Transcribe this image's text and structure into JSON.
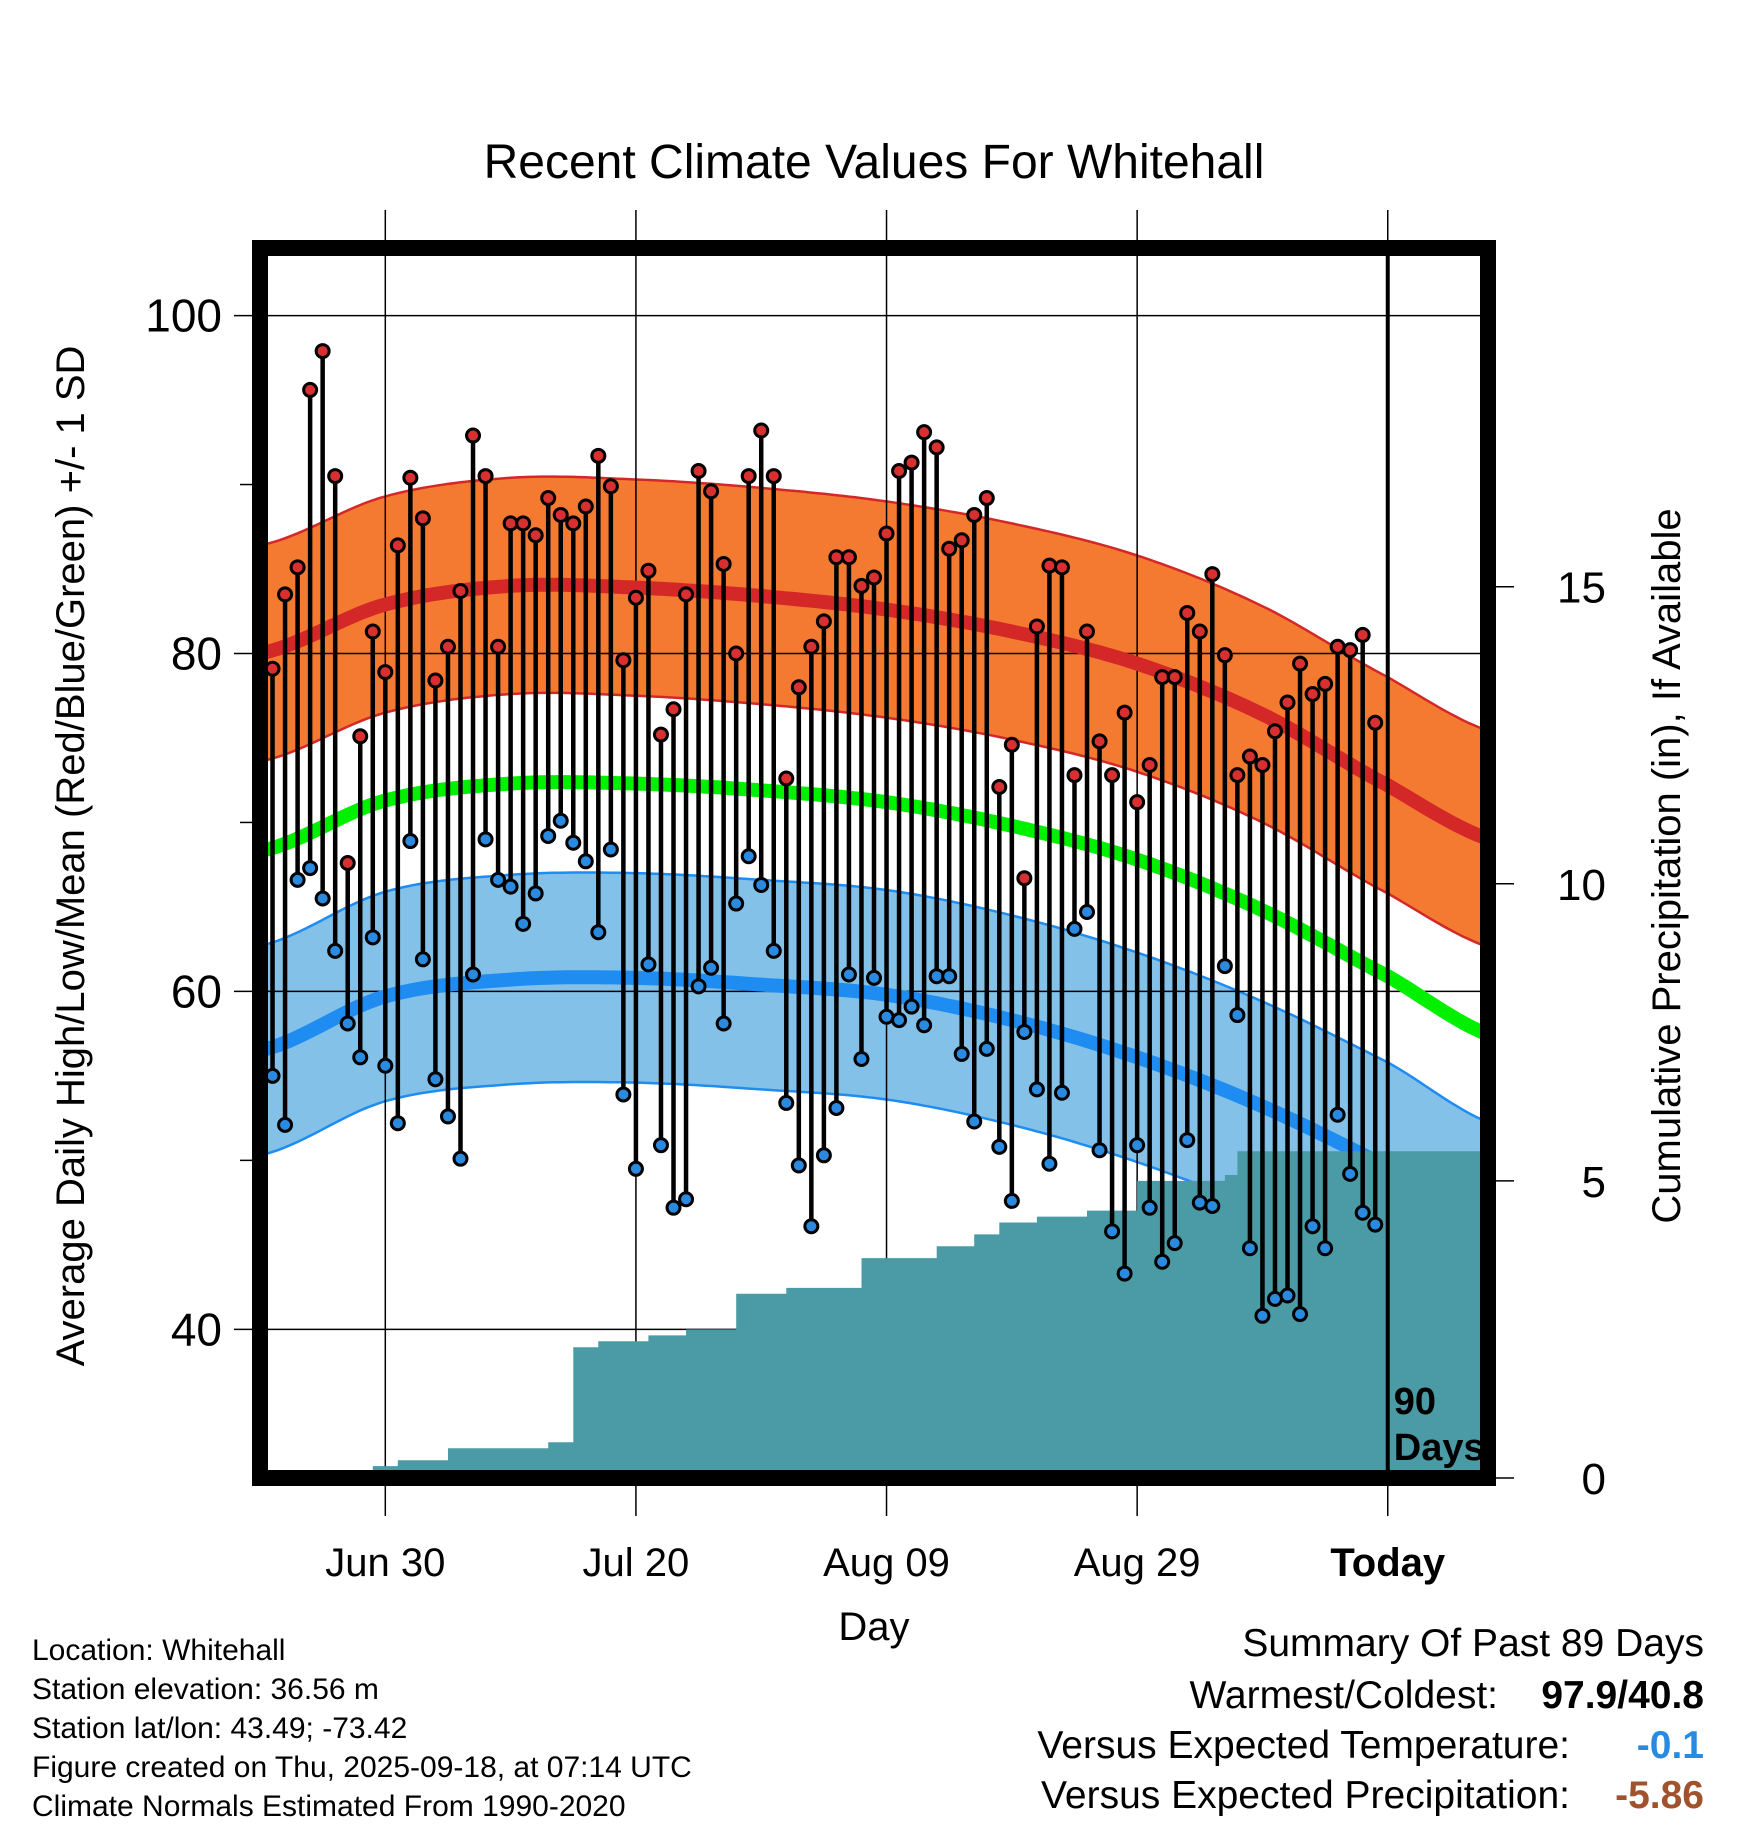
{
  "chart_data": {
    "type": "line",
    "title": "Recent Climate Values For Whitehall",
    "xlabel": "Day",
    "ylabel": "Average Daily High/Low/Mean (Red/Blue/Green) +/- 1 SD",
    "y2label": "Cumulative Precipitation (in), If Available",
    "xlim": [
      -89,
      9
    ],
    "ylim": [
      31.2,
      104
    ],
    "y2lim": [
      0,
      20.7
    ],
    "yticks": [
      100,
      80,
      60,
      40
    ],
    "y2ticks": [
      15,
      10,
      5,
      0
    ],
    "xticks": [
      {
        "day": -79,
        "label": "Jun 30"
      },
      {
        "day": -59,
        "label": "Jul 20"
      },
      {
        "day": -39,
        "label": "Aug 09"
      },
      {
        "day": -19,
        "label": "Aug 29"
      },
      {
        "day": 1,
        "label": "Today"
      }
    ],
    "window_label": [
      "90",
      "Days"
    ],
    "normals": {
      "high_mean": {
        "x": [
          -89,
          -79,
          -69,
          -59,
          -49,
          -39,
          -29,
          -19,
          -9,
          1,
          10
        ],
        "y": [
          80.0,
          82.9,
          84.0,
          83.9,
          83.4,
          82.6,
          81.3,
          79.4,
          76.4,
          72.2,
          68.8
        ]
      },
      "high_sd": 6.4,
      "low_mean": {
        "x": [
          -89,
          -79,
          -69,
          -59,
          -49,
          -39,
          -29,
          -19,
          -9,
          1,
          10
        ],
        "y": [
          56.5,
          59.7,
          60.7,
          60.8,
          60.4,
          59.8,
          58.3,
          56.1,
          53.2,
          49.6,
          45.8
        ]
      },
      "low_sd": 6.2,
      "mean_mean": {
        "x": [
          -89,
          -79,
          -69,
          -59,
          -49,
          -39,
          -29,
          -19,
          -9,
          1,
          10
        ],
        "y": [
          68.3,
          71.3,
          72.3,
          72.3,
          71.9,
          71.2,
          69.8,
          67.8,
          64.8,
          60.9,
          57.2
        ]
      }
    },
    "highs": [
      79.1,
      83.5,
      85.1,
      95.6,
      97.9,
      90.5,
      67.6,
      75.1,
      81.3,
      78.9,
      86.4,
      90.4,
      88.0,
      78.4,
      80.4,
      83.7,
      92.9,
      90.5,
      80.4,
      87.7,
      87.7,
      87.0,
      89.2,
      88.2,
      87.7,
      88.7,
      91.7,
      89.9,
      79.6,
      83.3,
      84.9,
      75.2,
      76.7,
      83.5,
      90.8,
      89.6,
      85.3,
      80.0,
      90.5,
      93.2,
      90.5,
      72.6,
      78.0,
      80.4,
      81.9,
      85.7,
      85.7,
      84.0,
      84.5,
      87.1,
      90.8,
      91.3,
      93.1,
      92.2,
      86.2,
      86.7,
      88.2,
      89.2,
      72.1,
      74.6,
      66.7,
      81.6,
      85.2,
      85.1,
      72.8,
      81.3,
      74.8,
      72.8,
      76.5,
      71.2,
      73.4,
      78.6,
      78.6,
      82.4,
      81.3,
      84.7,
      79.9,
      72.8,
      73.9,
      73.4,
      75.4,
      77.1,
      79.4,
      77.6,
      78.2,
      80.4,
      80.2,
      81.1,
      75.9
    ],
    "lows": [
      55.0,
      52.1,
      66.6,
      67.3,
      65.5,
      62.4,
      58.1,
      56.1,
      63.2,
      55.6,
      52.2,
      68.9,
      61.9,
      54.8,
      52.6,
      50.1,
      61.0,
      69.0,
      66.6,
      66.2,
      64.0,
      65.8,
      69.2,
      70.1,
      68.8,
      67.7,
      63.5,
      68.4,
      53.9,
      49.5,
      61.6,
      50.9,
      47.2,
      47.7,
      60.3,
      61.4,
      58.1,
      65.2,
      68.0,
      66.3,
      62.4,
      53.4,
      49.7,
      46.1,
      50.3,
      53.1,
      61.0,
      56.0,
      60.8,
      58.5,
      58.3,
      59.1,
      58.0,
      60.9,
      60.9,
      56.3,
      52.3,
      56.6,
      50.8,
      47.6,
      57.6,
      54.2,
      49.8,
      54.0,
      63.7,
      64.7,
      50.6,
      45.8,
      43.3,
      50.9,
      47.2,
      44.0,
      45.1,
      51.2,
      47.5,
      47.3,
      61.5,
      58.6,
      44.8,
      40.8,
      41.8,
      42.0,
      40.9,
      46.1,
      44.8,
      52.7,
      49.2,
      46.9,
      46.2
    ],
    "precip": {
      "x": [
        -87,
        -80,
        -78,
        -74,
        -66,
        -64,
        -62,
        -58,
        -55,
        -51,
        -50,
        -47,
        -45,
        -41,
        -36,
        -35,
        -32,
        -30,
        -27,
        -23,
        -21,
        -19,
        -13,
        -12,
        -11,
        -9,
        -4,
        9
      ],
      "y": [
        0.1,
        0.2,
        0.3,
        0.5,
        0.6,
        2.2,
        2.3,
        2.4,
        2.5,
        3.1,
        3.1,
        3.2,
        3.2,
        3.7,
        3.7,
        3.9,
        4.1,
        4.3,
        4.4,
        4.5,
        4.5,
        5.0,
        5.0,
        5.1,
        5.5,
        5.5,
        5.5,
        5.5
      ]
    }
  },
  "info": {
    "location": "Location: Whitehall",
    "elevation": "Station elevation: 36.56 m",
    "latlon": "Station lat/lon: 43.49; -73.42",
    "created": "Figure created on Thu, 2025-09-18, at 07:14 UTC",
    "normals": "Climate Normals Estimated From 1990-2020"
  },
  "summary": {
    "title": "Summary Of Past 89 Days",
    "warm_cold_label": "Warmest/Coldest:",
    "warm_cold_value": "97.9/40.8",
    "temp_label": "Versus Expected Temperature:",
    "temp_value": "-0.1",
    "precip_label": "Versus Expected Precipitation:",
    "precip_value": "-5.86"
  },
  "colors": {
    "high_band": "#f47a32",
    "high_line": "#d42828",
    "low_band": "#84c1e8",
    "low_line": "#1e8cf0",
    "mean_line": "#00f000",
    "precip_fill": "#4a9ba5",
    "high_marker": "#d83030",
    "low_marker": "#2a8ae0",
    "temp_value": "#2a8ae0",
    "precip_value": "#a0522d"
  }
}
